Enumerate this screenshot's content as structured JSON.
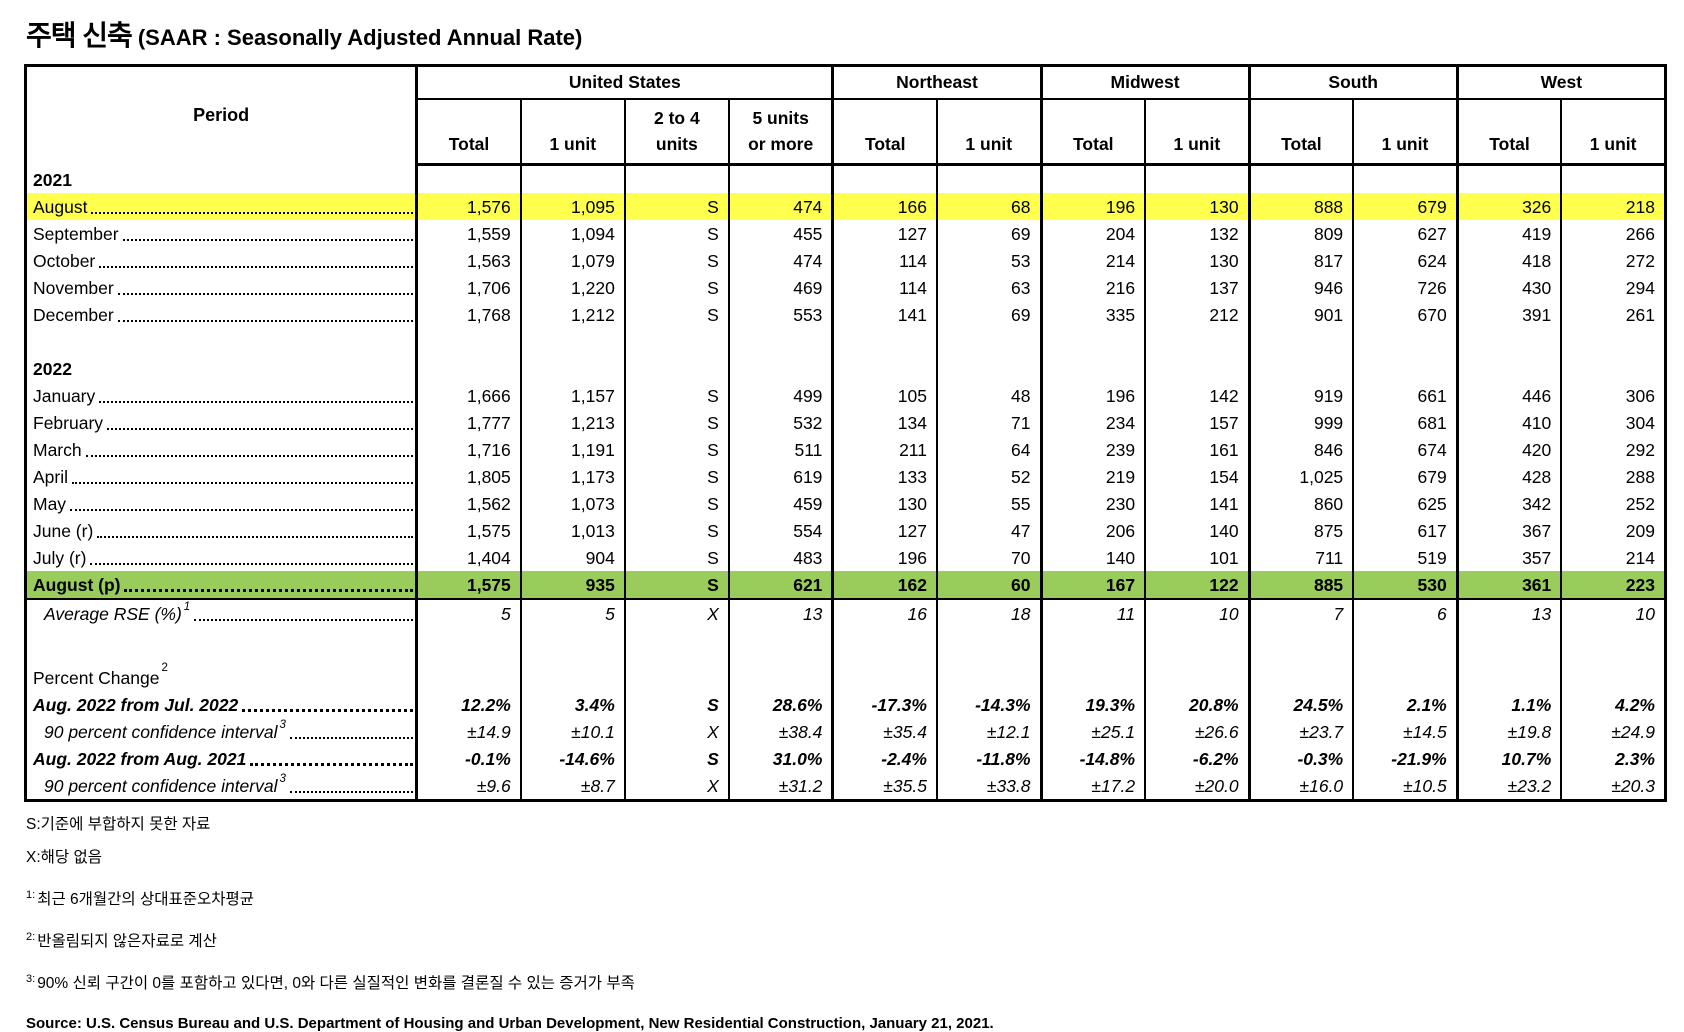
{
  "title": {
    "korean": "주택 신축",
    "english": "(SAAR : Seasonally Adjusted Annual Rate)"
  },
  "table": {
    "period_header": "Period",
    "groups": [
      {
        "label": "United States",
        "span": 4
      },
      {
        "label": "Northeast",
        "span": 2
      },
      {
        "label": "Midwest",
        "span": 2
      },
      {
        "label": "South",
        "span": 2
      },
      {
        "label": "West",
        "span": 2
      }
    ],
    "columns": [
      "Total",
      "1 unit",
      "2 to 4\nunits",
      "5 units\nor more",
      "Total",
      "1 unit",
      "Total",
      "1 unit",
      "Total",
      "1 unit",
      "Total",
      "1 unit"
    ],
    "section_starts": [
      0,
      4,
      6,
      8,
      10
    ],
    "rows": [
      {
        "label": "2021",
        "type": "year",
        "dots": false,
        "values": []
      },
      {
        "label": "August",
        "type": "month",
        "dots": true,
        "hl": "yellow",
        "values": [
          "1,576",
          "1,095",
          "S",
          "474",
          "166",
          "68",
          "196",
          "130",
          "888",
          "679",
          "326",
          "218"
        ]
      },
      {
        "label": "September",
        "type": "month",
        "dots": true,
        "values": [
          "1,559",
          "1,094",
          "S",
          "455",
          "127",
          "69",
          "204",
          "132",
          "809",
          "627",
          "419",
          "266"
        ]
      },
      {
        "label": "October",
        "type": "month",
        "dots": true,
        "values": [
          "1,563",
          "1,079",
          "S",
          "474",
          "114",
          "53",
          "214",
          "130",
          "817",
          "624",
          "418",
          "272"
        ]
      },
      {
        "label": "November",
        "type": "month",
        "dots": true,
        "values": [
          "1,706",
          "1,220",
          "S",
          "469",
          "114",
          "63",
          "216",
          "137",
          "946",
          "726",
          "430",
          "294"
        ]
      },
      {
        "label": "December",
        "type": "month",
        "dots": true,
        "values": [
          "1,768",
          "1,212",
          "S",
          "553",
          "141",
          "69",
          "335",
          "212",
          "901",
          "670",
          "391",
          "261"
        ]
      },
      {
        "label": "",
        "type": "blank",
        "dots": false,
        "values": []
      },
      {
        "label": "2022",
        "type": "year",
        "dots": false,
        "values": []
      },
      {
        "label": "January",
        "type": "month",
        "dots": true,
        "values": [
          "1,666",
          "1,157",
          "S",
          "499",
          "105",
          "48",
          "196",
          "142",
          "919",
          "661",
          "446",
          "306"
        ]
      },
      {
        "label": "February",
        "type": "month",
        "dots": true,
        "values": [
          "1,777",
          "1,213",
          "S",
          "532",
          "134",
          "71",
          "234",
          "157",
          "999",
          "681",
          "410",
          "304"
        ]
      },
      {
        "label": "March",
        "type": "month",
        "dots": true,
        "values": [
          "1,716",
          "1,191",
          "S",
          "511",
          "211",
          "64",
          "239",
          "161",
          "846",
          "674",
          "420",
          "292"
        ]
      },
      {
        "label": "April",
        "type": "month",
        "dots": true,
        "values": [
          "1,805",
          "1,173",
          "S",
          "619",
          "133",
          "52",
          "219",
          "154",
          "1,025",
          "679",
          "428",
          "288"
        ]
      },
      {
        "label": "May",
        "type": "month",
        "dots": true,
        "values": [
          "1,562",
          "1,073",
          "S",
          "459",
          "130",
          "55",
          "230",
          "141",
          "860",
          "625",
          "342",
          "252"
        ]
      },
      {
        "label": "June (r)",
        "type": "month",
        "dots": true,
        "values": [
          "1,575",
          "1,013",
          "S",
          "554",
          "127",
          "47",
          "206",
          "140",
          "875",
          "617",
          "367",
          "209"
        ]
      },
      {
        "label": "July (r)",
        "type": "month",
        "dots": true,
        "values": [
          "1,404",
          "904",
          "S",
          "483",
          "196",
          "70",
          "140",
          "101",
          "711",
          "519",
          "357",
          "214"
        ]
      },
      {
        "label": "August (p)",
        "type": "aug",
        "dots": true,
        "hl": "green",
        "values": [
          "1,575",
          "935",
          "S",
          "621",
          "162",
          "60",
          "167",
          "122",
          "885",
          "530",
          "361",
          "223"
        ]
      },
      {
        "label": "Average RSE (%)",
        "sup": "1",
        "type": "rse",
        "dots": true,
        "values": [
          "5",
          "5",
          "X",
          "13",
          "16",
          "18",
          "11",
          "10",
          "7",
          "6",
          "13",
          "10"
        ]
      },
      {
        "label": "",
        "type": "blank2",
        "dots": false,
        "values": []
      },
      {
        "label": "Percent Change",
        "sup": "2",
        "type": "section",
        "dots": false,
        "values": []
      },
      {
        "label": "Aug. 2022 from Jul. 2022",
        "type": "pct",
        "dots": true,
        "values": [
          "12.2%",
          "3.4%",
          "S",
          "28.6%",
          "-17.3%",
          "-14.3%",
          "19.3%",
          "20.8%",
          "24.5%",
          "2.1%",
          "1.1%",
          "4.2%"
        ]
      },
      {
        "label": "90 percent confidence interval",
        "sup": "3",
        "type": "ci",
        "dots": true,
        "values": [
          "±14.9",
          "±10.1",
          "X",
          "±38.4",
          "±35.4",
          "±12.1",
          "±25.1",
          "±26.6",
          "±23.7",
          "±14.5",
          "±19.8",
          "±24.9"
        ]
      },
      {
        "label": "Aug. 2022 from Aug. 2021",
        "type": "pct",
        "dots": true,
        "values": [
          "-0.1%",
          "-14.6%",
          "S",
          "31.0%",
          "-2.4%",
          "-11.8%",
          "-14.8%",
          "-6.2%",
          "-0.3%",
          "-21.9%",
          "10.7%",
          "2.3%"
        ]
      },
      {
        "label": "90 percent confidence interval",
        "sup": "3",
        "type": "ci",
        "dots": true,
        "values": [
          "±9.6",
          "±8.7",
          "X",
          "±31.2",
          "±35.5",
          "±33.8",
          "±17.2",
          "±20.0",
          "±16.0",
          "±10.5",
          "±23.2",
          "±20.3"
        ]
      }
    ]
  },
  "footnotes": [
    {
      "sup": "",
      "text": "S:기준에 부합하지 못한 자료"
    },
    {
      "sup": "",
      "text": "X:해당 없음"
    },
    {
      "sup": "1:",
      "text": "최근 6개월간의 상대표준오차평균"
    },
    {
      "sup": "2:",
      "text": "반올림되지 않은자료로 계산"
    },
    {
      "sup": "3:",
      "text": "90% 신뢰 구간이 0를 포함하고 있다면, 0와 다른 실질적인 변화를 결론질 수 있는 증거가 부족"
    }
  ],
  "source": "Source: U.S. Census Bureau and U.S. Department of Housing and Urban Development, New Residential Construction, January 21, 2021.",
  "colors": {
    "highlight_yellow": "#FFFF4D",
    "highlight_green": "#9ACC5C",
    "border": "#000000"
  }
}
